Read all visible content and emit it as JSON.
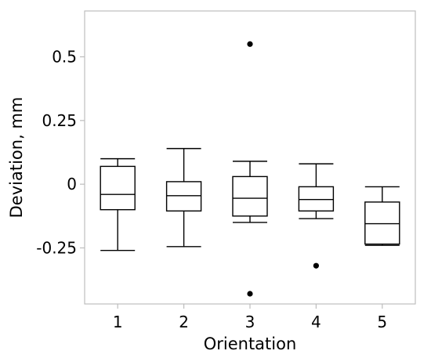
{
  "chart_data": {
    "type": "box",
    "xlabel": "Orientation",
    "ylabel": "Deviation, mm",
    "ylim": [
      -0.47,
      0.68
    ],
    "yticks": [
      -0.25,
      0,
      0.25,
      0.5
    ],
    "ytick_labels": [
      "-0.25",
      "0",
      "0.25",
      "0.5"
    ],
    "categories": [
      "1",
      "2",
      "3",
      "4",
      "5"
    ],
    "grid": false,
    "boxes": [
      {
        "category": "1",
        "whisker_low": -0.26,
        "q1": -0.1,
        "median": -0.04,
        "q3": 0.07,
        "whisker_high": 0.1,
        "outliers": []
      },
      {
        "category": "2",
        "whisker_low": -0.245,
        "q1": -0.105,
        "median": -0.045,
        "q3": 0.01,
        "whisker_high": 0.14,
        "outliers": []
      },
      {
        "category": "3",
        "whisker_low": -0.15,
        "q1": -0.125,
        "median": -0.055,
        "q3": 0.03,
        "whisker_high": 0.09,
        "outliers": [
          0.55,
          -0.43
        ]
      },
      {
        "category": "4",
        "whisker_low": -0.135,
        "q1": -0.105,
        "median": -0.06,
        "q3": -0.01,
        "whisker_high": 0.08,
        "outliers": [
          -0.32
        ]
      },
      {
        "category": "5",
        "whisker_low": -0.24,
        "q1": -0.235,
        "median": -0.155,
        "q3": -0.07,
        "whisker_high": -0.01,
        "outliers": []
      }
    ]
  }
}
